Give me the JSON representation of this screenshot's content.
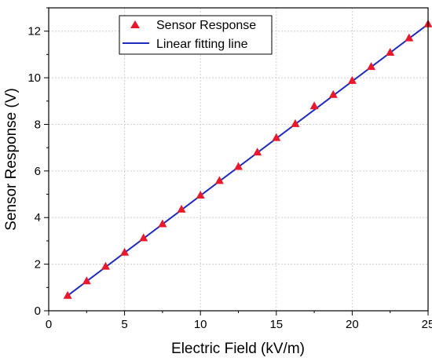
{
  "chart_data": {
    "type": "scatter",
    "xlabel": "Electric Field (kV/m)",
    "ylabel": "Sensor Response (V)",
    "xlim": [
      0,
      25
    ],
    "ylim": [
      0,
      13
    ],
    "x_ticks": [
      "0",
      "5",
      "10",
      "15",
      "20",
      "25"
    ],
    "y_ticks": [
      "0",
      "2",
      "4",
      "6",
      "8",
      "10",
      "12"
    ],
    "grid": true,
    "legend_position": "top-left",
    "series": [
      {
        "name": "Sensor Response",
        "kind": "markers",
        "marker": "triangle",
        "color": "#e8192c",
        "x": [
          1.25,
          2.5,
          3.75,
          5,
          6.25,
          7.5,
          8.75,
          10,
          11.25,
          12.5,
          13.75,
          15,
          16.25,
          17.5,
          18.75,
          20,
          21.25,
          22.5,
          23.75,
          25
        ],
        "y": [
          0.65,
          1.27,
          1.9,
          2.5,
          3.12,
          3.72,
          4.35,
          4.95,
          5.58,
          6.18,
          6.8,
          7.42,
          8.02,
          8.78,
          9.27,
          9.87,
          10.47,
          11.08,
          11.7,
          12.3
        ]
      },
      {
        "name": "Linear fitting line",
        "kind": "line",
        "color": "#1f2bbd",
        "x": [
          1.25,
          25
        ],
        "y": [
          0.65,
          12.3
        ]
      }
    ]
  }
}
